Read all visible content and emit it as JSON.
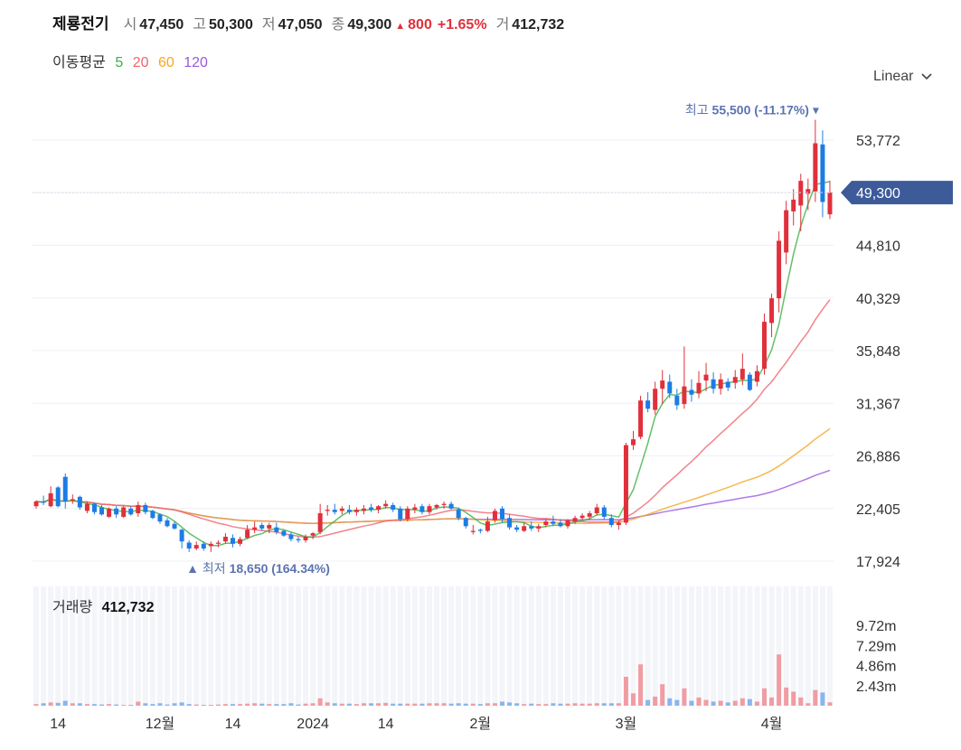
{
  "header": {
    "name": "제룡전기",
    "open_label": "시",
    "open": "47,450",
    "high_label": "고",
    "high": "50,300",
    "low_label": "저",
    "low": "47,050",
    "close_label": "종",
    "close": "49,300",
    "change": "800",
    "change_pct": "+1.65%",
    "volume_label": "거",
    "volume": "412,732"
  },
  "ma_legend": {
    "title": "이동평균",
    "periods": [
      "5",
      "20",
      "60",
      "120"
    ],
    "colors": [
      "#3cb043",
      "#f0646e",
      "#f5a623",
      "#9b59e0"
    ]
  },
  "scale_selector": {
    "label": "Linear"
  },
  "volume_panel": {
    "title": "거래량",
    "value": "412,732"
  },
  "colors": {
    "up": "#e0303b",
    "down": "#1c7ce6",
    "label_blue": "#5b73b0",
    "price_tag": "#3d5a99"
  },
  "chart_data": {
    "type": "candlestick",
    "price_axis": {
      "ticks": [
        17924,
        22405,
        26886,
        31367,
        35848,
        40329,
        44810,
        49291,
        53772
      ],
      "tick_labels": [
        "17,924",
        "22,405",
        "26,886",
        "31,367",
        "35,848",
        "40,329",
        "44,810",
        "",
        "53,772"
      ]
    },
    "x_labels": [
      "14",
      "12월",
      "14",
      "2024",
      "14",
      "2월",
      "3월",
      "4월"
    ],
    "current_price": {
      "value": 49300,
      "label": "49,300"
    },
    "high_marker": {
      "label": "최고",
      "value": "55,500",
      "pct": "(-11.17%)"
    },
    "low_marker": {
      "label": "최저",
      "value": "18,650",
      "pct": "(164.34%)"
    },
    "volume_axis": {
      "ticks": [
        2.43,
        4.86,
        7.29,
        9.72
      ],
      "labels": [
        "2.43m",
        "4.86m",
        "7.29m",
        "9.72m"
      ],
      "unit": "m"
    },
    "candles": [
      [
        22600,
        23100,
        22400,
        23000,
        0.2
      ],
      [
        23000,
        23500,
        22700,
        22900,
        0.3
      ],
      [
        22600,
        24300,
        22500,
        23700,
        0.4
      ],
      [
        24200,
        24300,
        22500,
        22600,
        0.35
      ],
      [
        25100,
        25400,
        22400,
        23000,
        0.6
      ],
      [
        23100,
        23600,
        22800,
        23200,
        0.3
      ],
      [
        23400,
        23500,
        22300,
        22500,
        0.3
      ],
      [
        22200,
        23000,
        22000,
        22800,
        0.2
      ],
      [
        22800,
        22900,
        21900,
        22100,
        0.2
      ],
      [
        22500,
        22700,
        21800,
        21900,
        0.15
      ],
      [
        21700,
        22500,
        21600,
        22400,
        0.2
      ],
      [
        22400,
        22600,
        21600,
        21900,
        0.15
      ],
      [
        21700,
        22600,
        21600,
        22500,
        0.1
      ],
      [
        22400,
        22600,
        21800,
        21900,
        0.1
      ],
      [
        22000,
        23000,
        21700,
        22700,
        0.5
      ],
      [
        22700,
        22900,
        21900,
        22100,
        0.3
      ],
      [
        22200,
        22300,
        21500,
        21600,
        0.2
      ],
      [
        21900,
        22000,
        21100,
        21300,
        0.3
      ],
      [
        21400,
        21600,
        20800,
        20900,
        0.15
      ],
      [
        21100,
        21300,
        20600,
        20700,
        0.3
      ],
      [
        20600,
        20700,
        19000,
        19600,
        0.4
      ],
      [
        19500,
        19700,
        18700,
        19000,
        0.2
      ],
      [
        19000,
        19600,
        18850,
        19300,
        0.15
      ],
      [
        19400,
        19600,
        18800,
        19000,
        0.1
      ],
      [
        19200,
        19600,
        18700,
        19400,
        0.1
      ],
      [
        19400,
        19700,
        19100,
        19500,
        0.15
      ],
      [
        19600,
        20300,
        19400,
        20000,
        0.2
      ],
      [
        19900,
        20200,
        19100,
        19400,
        0.2
      ],
      [
        19400,
        20000,
        19200,
        19800,
        0.2
      ],
      [
        19900,
        21000,
        19800,
        20600,
        0.25
      ],
      [
        20600,
        21300,
        20300,
        20800,
        0.3
      ],
      [
        21000,
        21200,
        20500,
        20700,
        0.25
      ],
      [
        20700,
        21200,
        20300,
        21000,
        0.2
      ],
      [
        20800,
        21200,
        20200,
        20400,
        0.2
      ],
      [
        20500,
        20600,
        20000,
        20100,
        0.2
      ],
      [
        20200,
        20400,
        19600,
        19800,
        0.3
      ],
      [
        19800,
        20000,
        19500,
        19700,
        0.15
      ],
      [
        19700,
        20200,
        19500,
        20000,
        0.25
      ],
      [
        20100,
        20400,
        19800,
        20300,
        0.3
      ],
      [
        20400,
        22800,
        20200,
        22000,
        0.9
      ],
      [
        22200,
        22700,
        21800,
        22300,
        0.4
      ],
      [
        22300,
        22800,
        21900,
        22100,
        0.3
      ],
      [
        22200,
        22600,
        21900,
        22400,
        0.25
      ],
      [
        22300,
        22700,
        21900,
        22100,
        0.25
      ],
      [
        22100,
        22500,
        21800,
        22300,
        0.2
      ],
      [
        22200,
        22700,
        21900,
        22400,
        0.3
      ],
      [
        22500,
        22800,
        22100,
        22300,
        0.3
      ],
      [
        22300,
        22700,
        22000,
        22600,
        0.3
      ],
      [
        22600,
        23100,
        22400,
        22800,
        0.35
      ],
      [
        22700,
        22900,
        22100,
        22300,
        0.25
      ],
      [
        22400,
        22600,
        21300,
        21500,
        0.25
      ],
      [
        21500,
        22600,
        21300,
        22400,
        0.25
      ],
      [
        22300,
        22800,
        22000,
        22500,
        0.25
      ],
      [
        22600,
        22800,
        21900,
        22100,
        0.25
      ],
      [
        22100,
        22800,
        21900,
        22600,
        0.3
      ],
      [
        22500,
        22800,
        22300,
        22700,
        0.3
      ],
      [
        22700,
        23000,
        22400,
        22800,
        0.3
      ],
      [
        22800,
        23000,
        22300,
        22400,
        0.25
      ],
      [
        22300,
        22500,
        21400,
        21600,
        0.3
      ],
      [
        21600,
        21700,
        20700,
        20900,
        0.25
      ],
      [
        20400,
        21000,
        20200,
        20500,
        0.25
      ],
      [
        20600,
        20700,
        20300,
        20500,
        0.2
      ],
      [
        20500,
        21700,
        20400,
        21300,
        0.3
      ],
      [
        21400,
        22400,
        21200,
        22200,
        0.3
      ],
      [
        22400,
        22600,
        21200,
        21500,
        0.5
      ],
      [
        21600,
        21900,
        20600,
        20800,
        0.4
      ],
      [
        20800,
        21000,
        20400,
        20600,
        0.3
      ],
      [
        20500,
        21200,
        20400,
        20900,
        0.2
      ],
      [
        20900,
        21300,
        20500,
        20700,
        0.25
      ],
      [
        20700,
        21100,
        20400,
        20900,
        0.2
      ],
      [
        21000,
        21500,
        20800,
        21300,
        0.2
      ],
      [
        21300,
        21800,
        20900,
        21100,
        0.3
      ],
      [
        21200,
        21500,
        20800,
        20900,
        0.25
      ],
      [
        20900,
        21500,
        20700,
        21400,
        0.25
      ],
      [
        21300,
        21800,
        21100,
        21600,
        0.3
      ],
      [
        21600,
        22000,
        21400,
        21800,
        0.25
      ],
      [
        21700,
        22200,
        21500,
        22000,
        0.25
      ],
      [
        22000,
        22800,
        21800,
        22500,
        0.3
      ],
      [
        22500,
        22700,
        21500,
        21700,
        0.3
      ],
      [
        21600,
        21900,
        20800,
        21000,
        0.3
      ],
      [
        21000,
        21400,
        20600,
        21200,
        0.3
      ],
      [
        21200,
        28000,
        21000,
        27800,
        3.5
      ],
      [
        27800,
        29000,
        27400,
        28300,
        1.5
      ],
      [
        28500,
        32000,
        28300,
        31600,
        5.0
      ],
      [
        31600,
        32300,
        30600,
        30900,
        0.7
      ],
      [
        30800,
        33200,
        30400,
        32600,
        1.1
      ],
      [
        32600,
        34200,
        31300,
        33300,
        2.6
      ],
      [
        33200,
        33800,
        31800,
        32200,
        0.9
      ],
      [
        32000,
        32600,
        30800,
        31200,
        0.7
      ],
      [
        31300,
        36200,
        30900,
        32800,
        2.1
      ],
      [
        32500,
        33400,
        31500,
        32100,
        0.6
      ],
      [
        32200,
        34100,
        31800,
        33100,
        1.0
      ],
      [
        33300,
        34800,
        32400,
        33800,
        0.7
      ],
      [
        33400,
        34000,
        32200,
        32600,
        0.5
      ],
      [
        32600,
        33900,
        32100,
        33400,
        0.6
      ],
      [
        33200,
        33500,
        32400,
        32700,
        0.4
      ],
      [
        33100,
        34200,
        32600,
        33600,
        0.6
      ],
      [
        33400,
        35600,
        32900,
        34300,
        0.9
      ],
      [
        33800,
        34000,
        32400,
        32500,
        0.8
      ],
      [
        33200,
        34600,
        32800,
        34100,
        0.5
      ],
      [
        34300,
        39000,
        33800,
        38300,
        2.1
      ],
      [
        38200,
        40700,
        37000,
        40300,
        1.0
      ],
      [
        40300,
        46000,
        39100,
        45200,
        6.2
      ],
      [
        44200,
        48600,
        43200,
        47800,
        2.2
      ],
      [
        47700,
        49600,
        46500,
        48700,
        1.7
      ],
      [
        48200,
        50900,
        46000,
        50300,
        1.0
      ],
      [
        49200,
        50500,
        47800,
        49600,
        0.3
      ],
      [
        49400,
        55500,
        48500,
        53500,
        1.9
      ],
      [
        53400,
        54600,
        47200,
        48500,
        1.6
      ],
      [
        47450,
        50300,
        47050,
        49300,
        0.41
      ]
    ]
  }
}
